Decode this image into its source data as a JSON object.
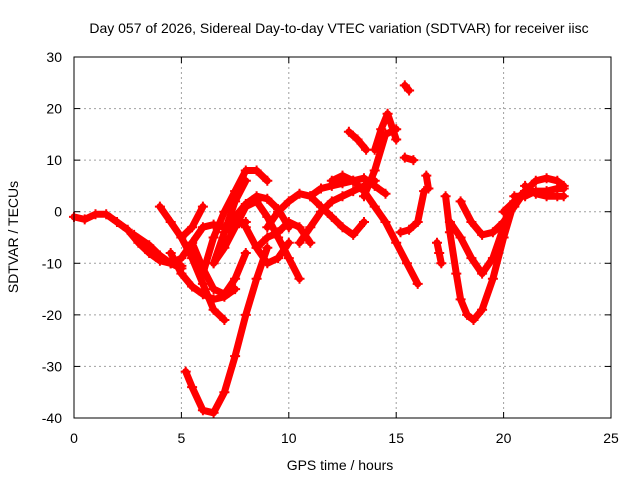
{
  "chart_data": {
    "type": "scatter",
    "title": "Day 057 of 2026, Sidereal Day-to-day VTEC variation (SDTVAR) for receiver iisc",
    "xlabel": "GPS time / hours",
    "ylabel": "SDTVAR / TECUs",
    "xlim": [
      0,
      25
    ],
    "ylim": [
      -40,
      30
    ],
    "xticks": [
      0,
      5,
      10,
      15,
      20,
      25
    ],
    "yticks": [
      -40,
      -30,
      -20,
      -10,
      0,
      10,
      20,
      30
    ],
    "grid": true,
    "marker": "+",
    "color": "#ff0000",
    "series": [
      {
        "x": [
          0,
          0.5,
          1,
          1.5,
          2,
          2.5,
          3,
          3.5,
          4,
          4.5,
          5
        ],
        "y": [
          -1,
          -1.5,
          -0.5,
          -0.5,
          -2,
          -3.5,
          -6,
          -8,
          -9.5,
          -10,
          -10.5
        ]
      },
      {
        "x": [
          2.8,
          3.5,
          4,
          4.5,
          5
        ],
        "y": [
          -4.5,
          -6.5,
          -8.5,
          -10,
          -11
        ]
      },
      {
        "x": [
          3.5,
          4,
          4.5,
          5,
          5.5,
          6,
          6.5,
          7,
          7.5,
          8
        ],
        "y": [
          -7,
          -9,
          -10,
          -9,
          -6,
          -3,
          -2.5,
          -3,
          -2.5,
          -2
        ]
      },
      {
        "x": [
          4,
          4.5,
          5,
          5.5,
          6,
          6.5,
          7
        ],
        "y": [
          1,
          -2,
          -5,
          -9,
          -14,
          -19,
          -21
        ]
      },
      {
        "x": [
          4.5,
          5,
          5.5,
          6,
          6.5,
          7,
          7.5
        ],
        "y": [
          -8,
          -12,
          -14.5,
          -16,
          -17,
          -16.5,
          -15
        ]
      },
      {
        "x": [
          5,
          5.5,
          6
        ],
        "y": [
          -5,
          -3,
          1
        ]
      },
      {
        "x": [
          5.5,
          6,
          6.5,
          7,
          7.5,
          8
        ],
        "y": [
          -6,
          -11,
          -15,
          -16,
          -13,
          -8
        ]
      },
      {
        "x": [
          6,
          6.5,
          7,
          7.5,
          8,
          8.5,
          9
        ],
        "y": [
          -12,
          -5,
          0,
          4,
          8,
          8,
          6
        ]
      },
      {
        "x": [
          6.5,
          7,
          7.5,
          8
        ],
        "y": [
          -10,
          -4,
          2,
          6
        ]
      },
      {
        "x": [
          7,
          7.5,
          8,
          8.5,
          9,
          9.5,
          10
        ],
        "y": [
          -4,
          -1,
          1.5,
          3,
          2.5,
          0.5,
          -3
        ]
      },
      {
        "x": [
          5.2,
          5.5,
          6,
          6.5,
          7,
          7.5,
          8,
          8.5,
          9
        ],
        "y": [
          -31,
          -34,
          -38.5,
          -39,
          -35,
          -28,
          -20,
          -13,
          -7
        ]
      },
      {
        "x": [
          6.5,
          7,
          7.5,
          8,
          8.5,
          9,
          9.5,
          10,
          10.5
        ],
        "y": [
          -10,
          -7,
          -3,
          1,
          2,
          -1,
          -5,
          -9,
          -13
        ]
      },
      {
        "x": [
          8,
          8.5,
          9,
          9.5,
          10
        ],
        "y": [
          -3,
          -7,
          -10,
          -9,
          -6
        ]
      },
      {
        "x": [
          8.5,
          9,
          9.5,
          10,
          10.5,
          11
        ],
        "y": [
          -7,
          -5,
          -4,
          -2,
          -3,
          -6
        ]
      },
      {
        "x": [
          9,
          9.5,
          10,
          10.5,
          11,
          11.5,
          12,
          12.5,
          13,
          13.5
        ],
        "y": [
          -3,
          0,
          2,
          3.5,
          3,
          1,
          -1,
          -3,
          -4.5,
          -2
        ]
      },
      {
        "x": [
          10.5,
          11,
          11.5,
          12,
          12.5,
          13,
          13.5,
          14
        ],
        "y": [
          -6,
          -3,
          0,
          2,
          3,
          4,
          5,
          6
        ]
      },
      {
        "x": [
          11,
          11.5,
          12,
          12.5,
          13,
          13.5,
          14,
          14.5
        ],
        "y": [
          3,
          4.5,
          5,
          5.5,
          6,
          6.5,
          5,
          3.5
        ]
      },
      {
        "x": [
          12,
          12.5,
          13,
          13.5,
          14,
          14.5,
          15,
          15.5,
          16
        ],
        "y": [
          6,
          7,
          6,
          4,
          1,
          -2,
          -6,
          -10,
          -14
        ]
      },
      {
        "x": [
          12.8,
          13.2,
          13.6
        ],
        "y": [
          15.5,
          14,
          12
        ]
      },
      {
        "x": [
          13.5,
          14,
          14.5,
          15
        ],
        "y": [
          3,
          8,
          15,
          16
        ]
      },
      {
        "x": [
          14,
          14.3,
          14.6,
          15
        ],
        "y": [
          12,
          16,
          19,
          14
        ]
      },
      {
        "x": [
          15.4,
          15.6
        ],
        "y": [
          24.5,
          23.5
        ]
      },
      {
        "x": [
          15.4,
          15.8
        ],
        "y": [
          10.5,
          10
        ]
      },
      {
        "x": [
          15.2,
          15.6,
          16,
          16.3
        ],
        "y": [
          -4,
          -3.5,
          -2,
          4
        ]
      },
      {
        "x": [
          16.4,
          16.5
        ],
        "y": [
          7,
          4.5
        ]
      },
      {
        "x": [
          16.9,
          17,
          17.1
        ],
        "y": [
          -6,
          -8,
          -10
        ]
      },
      {
        "x": [
          17.3,
          17.5,
          17.8,
          18,
          18.3,
          18.6,
          19,
          19.5,
          20,
          20.5
        ],
        "y": [
          3,
          -4,
          -12,
          -17,
          -20,
          -21,
          -19,
          -13,
          -5,
          2
        ]
      },
      {
        "x": [
          17.5,
          18,
          18.5,
          19,
          19.5,
          20
        ],
        "y": [
          -2,
          -5,
          -9,
          -12,
          -9,
          -3
        ]
      },
      {
        "x": [
          18,
          18.5,
          19,
          19.5,
          20,
          20.5,
          21
        ],
        "y": [
          2,
          -2,
          -4.5,
          -4,
          -2,
          1,
          4
        ]
      },
      {
        "x": [
          20,
          20.5,
          21,
          21.5,
          22,
          22.5,
          22.8
        ],
        "y": [
          0,
          2,
          4,
          6,
          6.5,
          6,
          5
        ]
      },
      {
        "x": [
          20.5,
          21,
          21.5,
          22,
          22.5,
          22.8
        ],
        "y": [
          3,
          3,
          4,
          4,
          4.5,
          4.5
        ]
      },
      {
        "x": [
          21,
          21.5,
          22,
          22.5,
          22.8
        ],
        "y": [
          5,
          3.5,
          3,
          3,
          3
        ]
      }
    ]
  }
}
